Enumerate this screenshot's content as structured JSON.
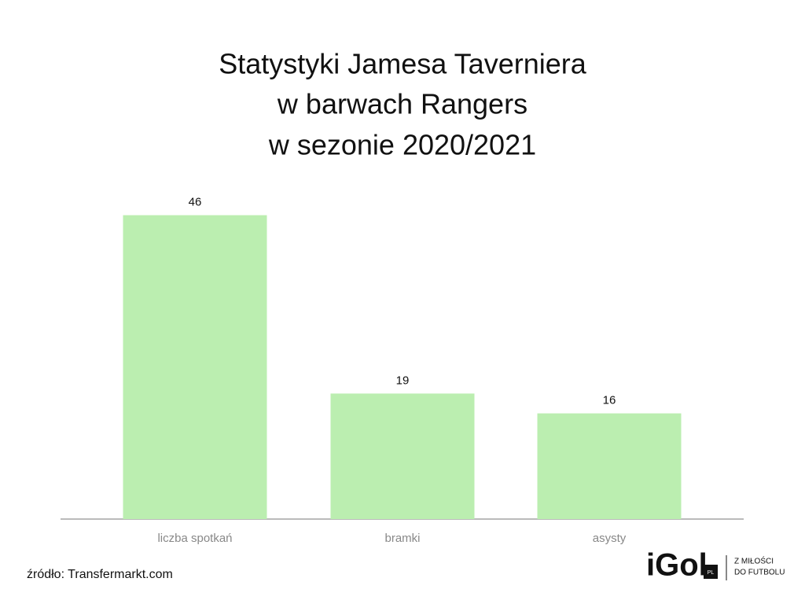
{
  "chart_data": {
    "type": "bar",
    "title": [
      "Statystyki Jamesa Taverniera",
      "w barwach Rangers",
      "w sezonie 2020/2021"
    ],
    "categories": [
      "liczba spotkań",
      "bramki",
      "asysty"
    ],
    "values": [
      46,
      19,
      16
    ],
    "color": "#bbeeb0",
    "ylim": [
      0,
      50
    ],
    "source": "źródło: Transfermarkt.com",
    "logo": {
      "name": "iGol",
      "badge": "PL",
      "tagline": [
        "Z MIŁOŚCI",
        "DO FUTBOLU"
      ]
    }
  }
}
